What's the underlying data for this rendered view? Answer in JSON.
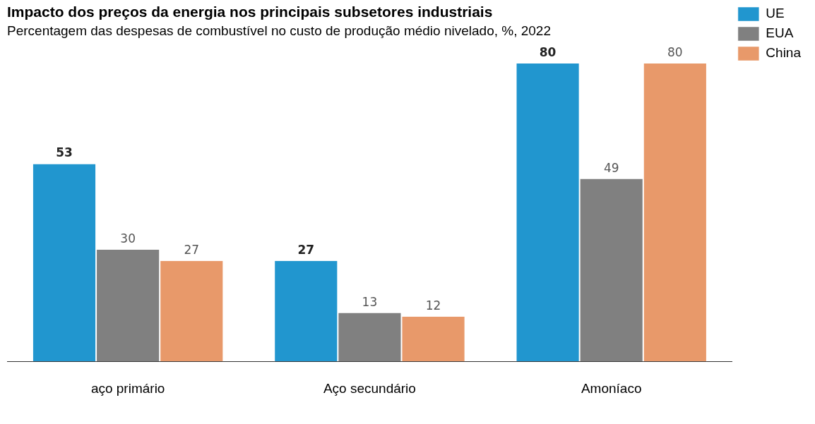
{
  "chart_data": {
    "type": "bar",
    "title": "Impacto dos preços da energia nos principais subsetores industriais",
    "subtitle": "Percentagem das despesas de combustível no custo de produção médio nivelado, %, 2022",
    "categories": [
      "aço primário",
      "Aço secundário",
      "Amoníaco"
    ],
    "series": [
      {
        "name": "UE",
        "color": "#2196cf",
        "values": [
          53,
          27,
          80
        ]
      },
      {
        "name": "EUA",
        "color": "#808080",
        "values": [
          30,
          13,
          49
        ]
      },
      {
        "name": "China",
        "color": "#e8996a",
        "values": [
          27,
          12,
          80
        ]
      }
    ],
    "data_labels": true,
    "grid": false,
    "legend": "top right"
  }
}
